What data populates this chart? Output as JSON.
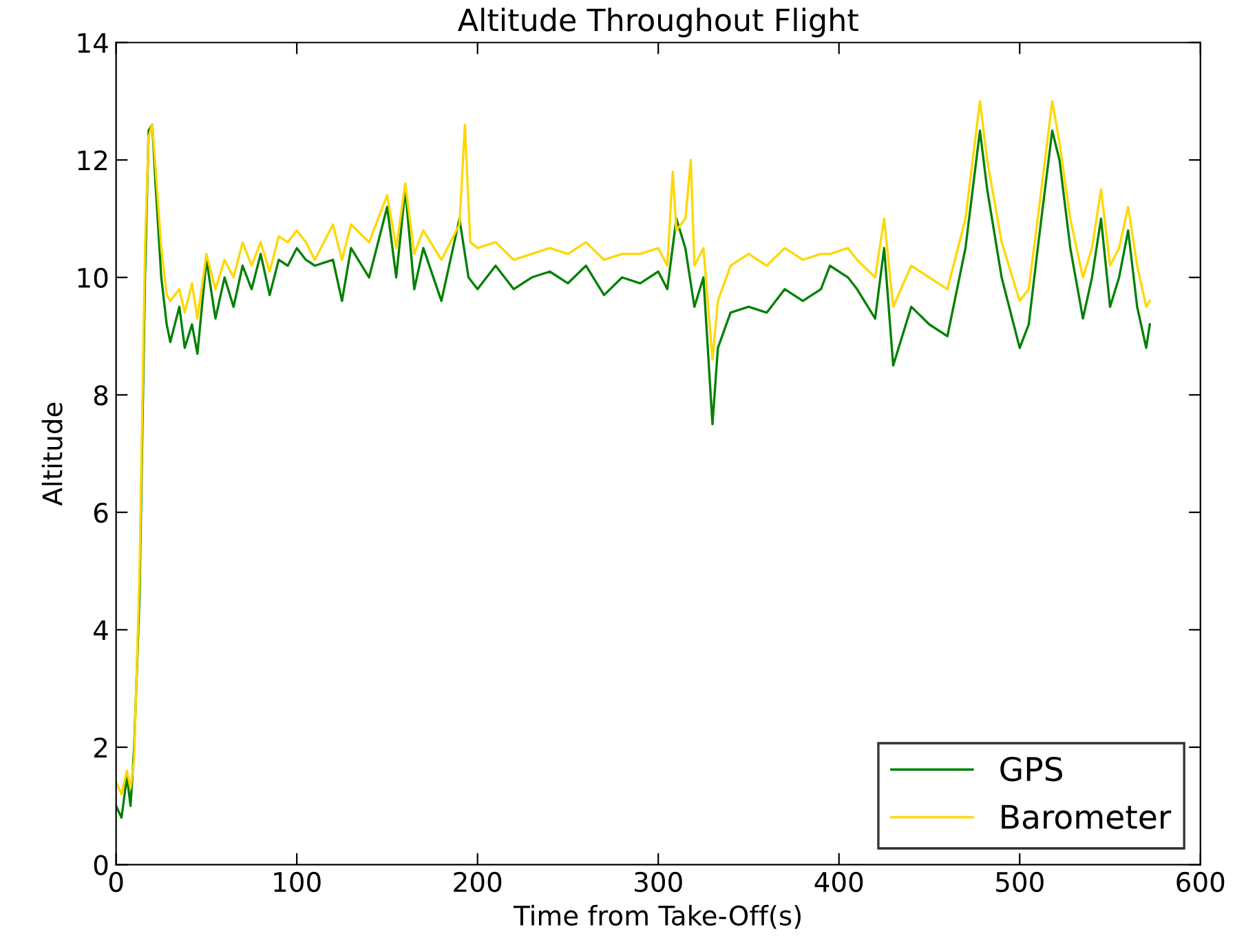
{
  "chart_data": {
    "type": "line",
    "title": "Altitude Throughout Flight",
    "xlabel": "Time from Take-Off(s)",
    "ylabel": "Altitude",
    "xlim": [
      0,
      600
    ],
    "ylim": [
      0,
      14
    ],
    "xticks": [
      0,
      100,
      200,
      300,
      400,
      500,
      600
    ],
    "yticks": [
      0,
      2,
      4,
      6,
      8,
      10,
      12,
      14
    ],
    "grid": false,
    "legend": "bottom right",
    "marker": "none",
    "line_style": "solid",
    "series": [
      {
        "name": "GPS",
        "color": "#008000",
        "x": [
          0,
          3,
          6,
          8,
          10,
          13,
          16,
          18,
          20,
          22,
          25,
          28,
          30,
          35,
          38,
          42,
          45,
          50,
          55,
          60,
          65,
          70,
          75,
          80,
          85,
          90,
          95,
          100,
          105,
          110,
          120,
          125,
          130,
          140,
          150,
          155,
          160,
          165,
          170,
          180,
          190,
          195,
          200,
          210,
          220,
          230,
          240,
          250,
          260,
          270,
          280,
          290,
          300,
          305,
          310,
          315,
          320,
          325,
          330,
          333,
          340,
          350,
          360,
          370,
          380,
          390,
          395,
          405,
          410,
          420,
          425,
          430,
          440,
          450,
          460,
          470,
          478,
          482,
          490,
          500,
          505,
          510,
          518,
          522,
          528,
          535,
          540,
          545,
          550,
          555,
          560,
          565,
          570,
          572
        ],
        "values": [
          1.0,
          0.8,
          1.5,
          1.0,
          2.0,
          4.6,
          10,
          12.5,
          12.6,
          11.5,
          10,
          9.2,
          8.9,
          9.5,
          8.8,
          9.2,
          8.7,
          10.3,
          9.3,
          10.0,
          9.5,
          10.2,
          9.8,
          10.4,
          9.7,
          10.3,
          10.2,
          10.5,
          10.3,
          10.2,
          10.3,
          9.6,
          10.5,
          10.0,
          11.2,
          10.0,
          11.5,
          9.8,
          10.5,
          9.6,
          11.0,
          10.0,
          9.8,
          10.2,
          9.8,
          10.0,
          10.1,
          9.9,
          10.2,
          9.7,
          10.0,
          9.9,
          10.1,
          9.8,
          11.0,
          10.5,
          9.5,
          10.0,
          7.5,
          8.8,
          9.4,
          9.5,
          9.4,
          9.8,
          9.6,
          9.8,
          10.2,
          10.0,
          9.8,
          9.3,
          10.5,
          8.5,
          9.5,
          9.2,
          9.0,
          10.5,
          12.5,
          11.5,
          10.0,
          8.8,
          9.2,
          10.5,
          12.5,
          12.0,
          10.5,
          9.3,
          10.0,
          11.0,
          9.5,
          10.0,
          10.8,
          9.5,
          8.8,
          9.2
        ]
      },
      {
        "name": "Barometer",
        "color": "#ffd700",
        "x": [
          0,
          3,
          6,
          8,
          10,
          13,
          16,
          18,
          20,
          22,
          25,
          28,
          30,
          35,
          38,
          42,
          45,
          50,
          55,
          60,
          65,
          70,
          75,
          80,
          85,
          90,
          95,
          100,
          105,
          110,
          120,
          125,
          130,
          140,
          150,
          155,
          160,
          165,
          170,
          180,
          190,
          193,
          196,
          200,
          210,
          220,
          230,
          240,
          250,
          260,
          270,
          280,
          290,
          300,
          305,
          308,
          310,
          315,
          318,
          320,
          325,
          330,
          333,
          340,
          350,
          360,
          370,
          380,
          390,
          395,
          405,
          410,
          420,
          425,
          430,
          440,
          450,
          460,
          470,
          478,
          482,
          490,
          500,
          505,
          510,
          518,
          522,
          528,
          535,
          540,
          545,
          550,
          555,
          560,
          565,
          570,
          572
        ],
        "values": [
          1.4,
          1.2,
          1.6,
          1.3,
          1.8,
          5,
          10.5,
          12.4,
          12.6,
          11.8,
          10.5,
          9.7,
          9.6,
          9.8,
          9.4,
          9.9,
          9.3,
          10.4,
          9.8,
          10.3,
          10.0,
          10.6,
          10.2,
          10.6,
          10.1,
          10.7,
          10.6,
          10.8,
          10.6,
          10.3,
          10.9,
          10.3,
          10.9,
          10.6,
          11.4,
          10.5,
          11.6,
          10.4,
          10.8,
          10.3,
          10.9,
          12.6,
          10.6,
          10.5,
          10.6,
          10.3,
          10.4,
          10.5,
          10.4,
          10.6,
          10.3,
          10.4,
          10.4,
          10.5,
          10.2,
          11.8,
          10.8,
          11.0,
          12.0,
          10.2,
          10.5,
          8.6,
          9.6,
          10.2,
          10.4,
          10.2,
          10.5,
          10.3,
          10.4,
          10.4,
          10.5,
          10.3,
          10.0,
          11.0,
          9.5,
          10.2,
          10.0,
          9.8,
          11.0,
          13.0,
          12.0,
          10.6,
          9.6,
          9.8,
          11.0,
          13.0,
          12.3,
          11.0,
          10.0,
          10.5,
          11.5,
          10.2,
          10.5,
          11.2,
          10.2,
          9.5,
          9.6
        ]
      }
    ]
  }
}
